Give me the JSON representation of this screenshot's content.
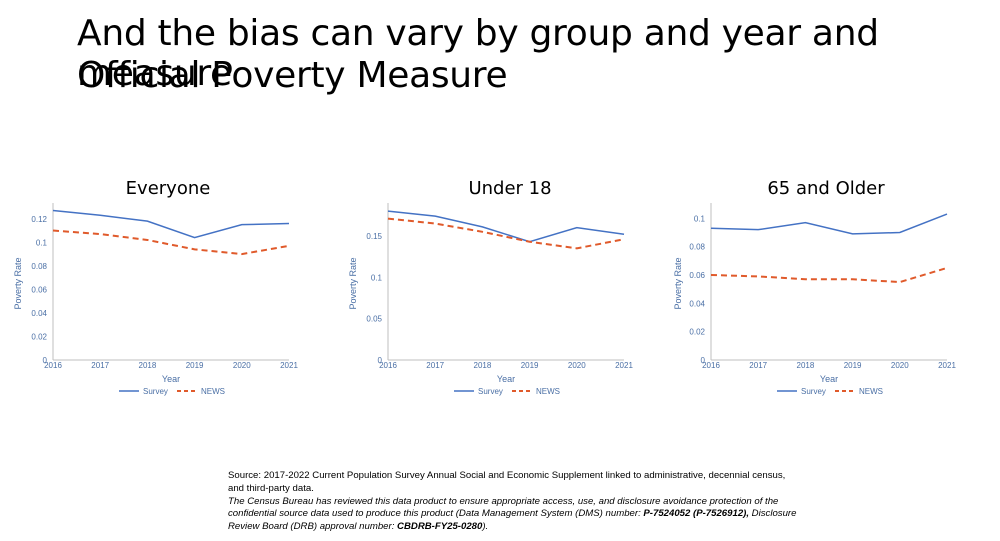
{
  "slide": {
    "title_line1": "And the bias can vary by group and year and measure",
    "title_line2": "Official Poverty Measure"
  },
  "chart_data": [
    {
      "type": "line",
      "title": "Everyone",
      "xlabel": "Year",
      "ylabel": "Poverty Rate",
      "x": [
        "2016",
        "2017",
        "2018",
        "2019",
        "2020",
        "2021"
      ],
      "ylim": [
        0,
        0.12
      ],
      "yticks": [
        "0",
        "0.02",
        "0.04",
        "0.06",
        "0.08",
        "0.1",
        "0.12"
      ],
      "series": [
        {
          "name": "Survey",
          "color": "#4472c4",
          "dash": "solid",
          "values": [
            0.127,
            0.123,
            0.118,
            0.104,
            0.115,
            0.116
          ]
        },
        {
          "name": "NEWS",
          "color": "#e05a2b",
          "dash": "dashed",
          "values": [
            0.11,
            0.107,
            0.102,
            0.094,
            0.09,
            0.097
          ]
        }
      ],
      "legend": "bottom"
    },
    {
      "type": "line",
      "title": "Under 18",
      "xlabel": "Year",
      "ylabel": "Poverty Rate",
      "x": [
        "2016",
        "2017",
        "2018",
        "2019",
        "2020",
        "2021"
      ],
      "ylim": [
        0,
        0.15
      ],
      "yticks": [
        "0",
        "0.05",
        "0.1",
        "0.15"
      ],
      "series": [
        {
          "name": "Survey",
          "color": "#4472c4",
          "dash": "solid",
          "values": [
            0.18,
            0.174,
            0.161,
            0.143,
            0.16,
            0.152
          ]
        },
        {
          "name": "NEWS",
          "color": "#e05a2b",
          "dash": "dashed",
          "values": [
            0.171,
            0.165,
            0.155,
            0.143,
            0.135,
            0.146
          ]
        }
      ],
      "legend": "bottom"
    },
    {
      "type": "line",
      "title": "65 and Older",
      "xlabel": "Year",
      "ylabel": "Poverty Rate",
      "x": [
        "2016",
        "2017",
        "2018",
        "2019",
        "2020",
        "2021"
      ],
      "ylim": [
        0,
        0.1
      ],
      "yticks": [
        "0",
        "0.02",
        "0.04",
        "0.06",
        "0.08",
        "0.1"
      ],
      "series": [
        {
          "name": "Survey",
          "color": "#4472c4",
          "dash": "solid",
          "values": [
            0.093,
            0.092,
            0.097,
            0.089,
            0.09,
            0.103
          ]
        },
        {
          "name": "NEWS",
          "color": "#e05a2b",
          "dash": "dashed",
          "values": [
            0.06,
            0.059,
            0.057,
            0.057,
            0.055,
            0.065
          ]
        }
      ],
      "legend": "bottom"
    }
  ],
  "source": {
    "line1": "Source: 2017-2022 Current Population Survey Annual Social and Economic Supplement linked to administrative, decennial census, and third-party data.",
    "line2": "The Census Bureau has reviewed this data product to ensure appropriate access, use, and disclosure avoidance protection of the confidential source data used to produce this product (Data Management System (DMS) number: ",
    "dms_number": "P-7524052 (P-7526912),",
    "line3": " Disclosure Review Board (DRB) approval number: ",
    "drb_number": "CBDRB-FY25-0280",
    "line4": ")."
  }
}
